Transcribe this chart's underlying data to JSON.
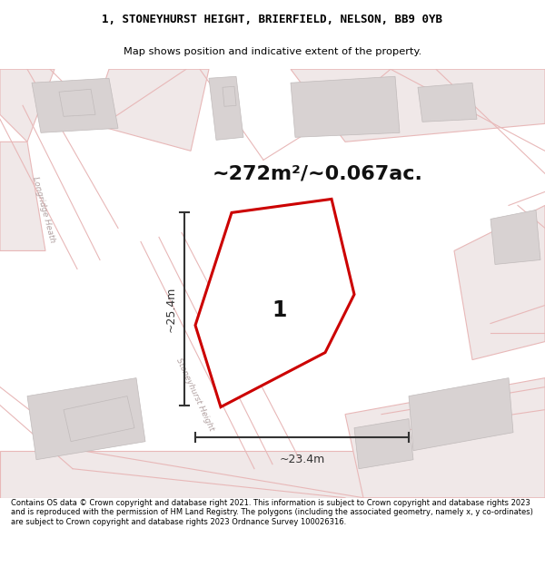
{
  "title_line1": "1, STONEYHURST HEIGHT, BRIERFIELD, NELSON, BB9 0YB",
  "title_line2": "Map shows position and indicative extent of the property.",
  "area_text": "~272m²/~0.067ac.",
  "dim_h": "~25.4m",
  "dim_w": "~23.4m",
  "label": "1",
  "footer": "Contains OS data © Crown copyright and database right 2021. This information is subject to Crown copyright and database rights 2023 and is reproduced with the permission of HM Land Registry. The polygons (including the associated geometry, namely x, y co-ordinates) are subject to Crown copyright and database rights 2023 Ordnance Survey 100026316.",
  "bg_color": "#ffffff",
  "map_bg": "#f7f3f3",
  "road_color": "#e8b8b8",
  "building_color": "#d8d2d2",
  "building_edge": "#c0baba",
  "plot_color": "#cc0000",
  "plot_fill": "#ffffff",
  "dim_color": "#333333",
  "road_label_color": "#b0a0a0",
  "road_fill": "#f0e8e8"
}
